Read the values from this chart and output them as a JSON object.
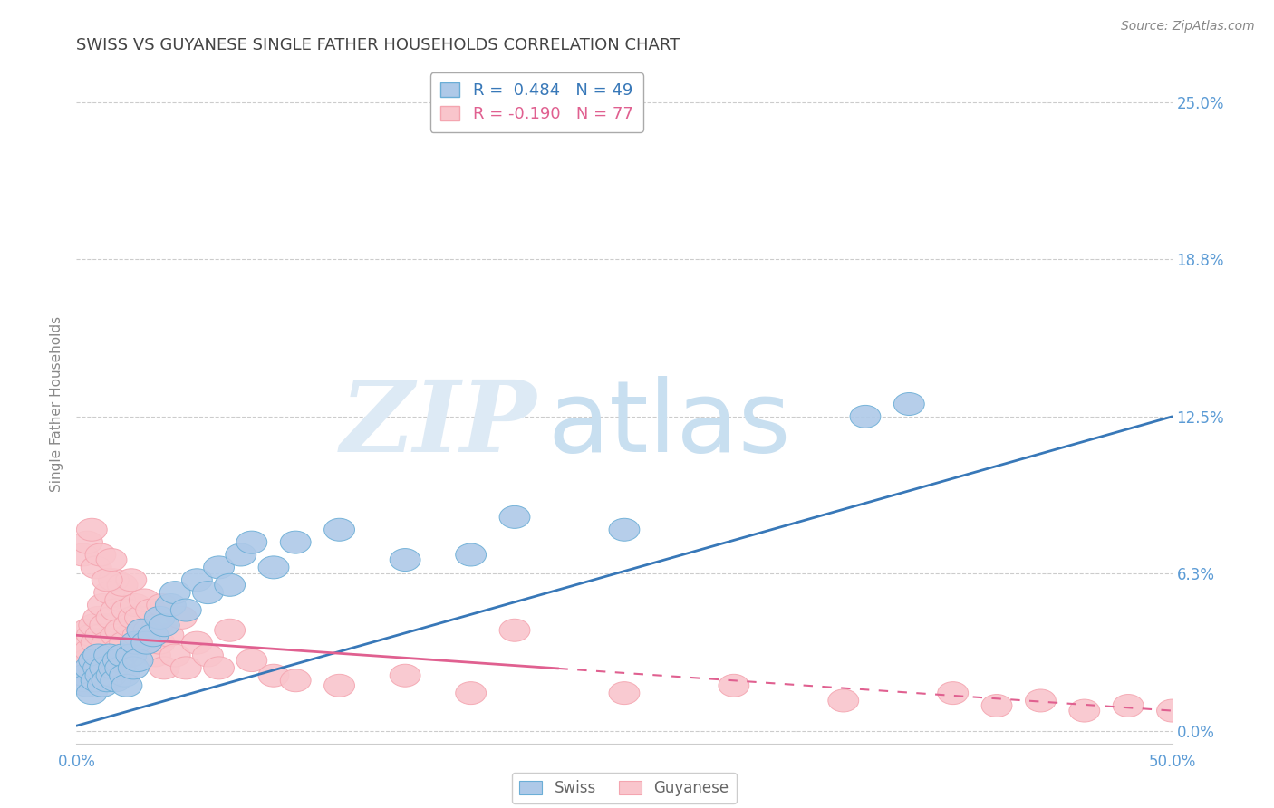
{
  "title": "SWISS VS GUYANESE SINGLE FATHER HOUSEHOLDS CORRELATION CHART",
  "source": "Source: ZipAtlas.com",
  "ylabel": "Single Father Households",
  "xlim": [
    0.0,
    0.5
  ],
  "ylim": [
    -0.005,
    0.265
  ],
  "xticks": [
    0.0,
    0.1,
    0.2,
    0.3,
    0.4,
    0.5
  ],
  "xtick_labels_show": [
    "0.0%",
    "",
    "",
    "",
    "",
    "50.0%"
  ],
  "yticks": [
    0.0,
    0.0625,
    0.125,
    0.1875,
    0.25
  ],
  "ytick_labels": [
    "0.0%",
    "6.3%",
    "12.5%",
    "18.8%",
    "25.0%"
  ],
  "swiss_color": "#6baed6",
  "swiss_color_fill": "#aec9e8",
  "guyanese_color": "#f4a5b0",
  "guyanese_color_fill": "#f9c5cc",
  "trend_swiss_color": "#3878b8",
  "trend_guyanese_color": "#e06090",
  "swiss_R": 0.484,
  "swiss_N": 49,
  "guyanese_R": -0.19,
  "guyanese_N": 77,
  "legend_label_swiss": "R =  0.484   N = 49",
  "legend_label_guyanese": "R = -0.190   N = 77",
  "background_color": "#ffffff",
  "grid_color": "#cccccc",
  "title_color": "#444444",
  "tick_label_color": "#5b9bd5",
  "swiss_scatter_x": [
    0.003,
    0.004,
    0.005,
    0.006,
    0.007,
    0.008,
    0.009,
    0.01,
    0.01,
    0.011,
    0.012,
    0.013,
    0.014,
    0.015,
    0.016,
    0.017,
    0.018,
    0.019,
    0.02,
    0.021,
    0.022,
    0.023,
    0.025,
    0.026,
    0.027,
    0.028,
    0.03,
    0.032,
    0.035,
    0.038,
    0.04,
    0.043,
    0.045,
    0.05,
    0.055,
    0.06,
    0.065,
    0.07,
    0.075,
    0.08,
    0.09,
    0.1,
    0.12,
    0.15,
    0.18,
    0.2,
    0.25,
    0.36,
    0.38
  ],
  "swiss_scatter_y": [
    0.02,
    0.022,
    0.018,
    0.025,
    0.015,
    0.028,
    0.02,
    0.025,
    0.03,
    0.022,
    0.018,
    0.025,
    0.02,
    0.03,
    0.022,
    0.025,
    0.02,
    0.028,
    0.025,
    0.03,
    0.022,
    0.018,
    0.03,
    0.025,
    0.035,
    0.028,
    0.04,
    0.035,
    0.038,
    0.045,
    0.042,
    0.05,
    0.055,
    0.048,
    0.06,
    0.055,
    0.065,
    0.058,
    0.07,
    0.075,
    0.065,
    0.075,
    0.08,
    0.068,
    0.07,
    0.085,
    0.08,
    0.125,
    0.13
  ],
  "guyanese_scatter_x": [
    0.002,
    0.003,
    0.004,
    0.005,
    0.005,
    0.006,
    0.007,
    0.008,
    0.008,
    0.009,
    0.01,
    0.01,
    0.011,
    0.012,
    0.013,
    0.014,
    0.015,
    0.015,
    0.016,
    0.017,
    0.018,
    0.018,
    0.019,
    0.02,
    0.02,
    0.021,
    0.022,
    0.023,
    0.024,
    0.025,
    0.025,
    0.026,
    0.027,
    0.028,
    0.029,
    0.03,
    0.031,
    0.032,
    0.033,
    0.034,
    0.035,
    0.036,
    0.037,
    0.038,
    0.039,
    0.04,
    0.042,
    0.045,
    0.048,
    0.05,
    0.055,
    0.06,
    0.065,
    0.07,
    0.08,
    0.09,
    0.1,
    0.12,
    0.15,
    0.18,
    0.2,
    0.25,
    0.3,
    0.35,
    0.4,
    0.42,
    0.44,
    0.46,
    0.48,
    0.5,
    0.003,
    0.005,
    0.007,
    0.009,
    0.011,
    0.014,
    0.016
  ],
  "guyanese_scatter_y": [
    0.03,
    0.025,
    0.035,
    0.028,
    0.04,
    0.032,
    0.038,
    0.042,
    0.025,
    0.035,
    0.045,
    0.03,
    0.038,
    0.05,
    0.042,
    0.035,
    0.055,
    0.028,
    0.045,
    0.06,
    0.038,
    0.048,
    0.032,
    0.052,
    0.04,
    0.058,
    0.035,
    0.048,
    0.042,
    0.06,
    0.03,
    0.045,
    0.05,
    0.038,
    0.045,
    0.04,
    0.052,
    0.035,
    0.04,
    0.048,
    0.038,
    0.03,
    0.042,
    0.035,
    0.05,
    0.025,
    0.038,
    0.03,
    0.045,
    0.025,
    0.035,
    0.03,
    0.025,
    0.04,
    0.028,
    0.022,
    0.02,
    0.018,
    0.022,
    0.015,
    0.04,
    0.015,
    0.018,
    0.012,
    0.015,
    0.01,
    0.012,
    0.008,
    0.01,
    0.008,
    0.07,
    0.075,
    0.08,
    0.065,
    0.07,
    0.06,
    0.068
  ],
  "swiss_trend_x": [
    0.0,
    0.5
  ],
  "swiss_trend_y": [
    0.002,
    0.125
  ],
  "guyanese_trend_x": [
    0.0,
    0.5
  ],
  "guyanese_trend_y": [
    0.038,
    0.008
  ]
}
